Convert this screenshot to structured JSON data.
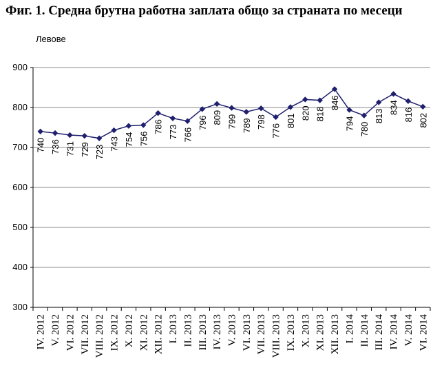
{
  "title": "Фиг. 1. Средна брутна работна заплата общо за страната по месеци",
  "chart_data": {
    "type": "line",
    "ylabel": "Левове",
    "ylim": [
      300,
      900
    ],
    "yticks": [
      300,
      400,
      500,
      600,
      700,
      800,
      900
    ],
    "grid": true,
    "categories": [
      "IV. 2012",
      "V. 2012",
      "VI. 2012",
      "VII. 2012",
      "VIII. 2012",
      "IX. 2012",
      "X. 2012",
      "XI. 2012",
      "XII. 2012",
      "I. 2013",
      "II. 2013",
      "III. 2013",
      "IV. 2013",
      "V. 2013",
      "VI. 2013",
      "VII. 2013",
      "VIII. 2013",
      "IX. 2013",
      "X. 2013",
      "XI. 2013",
      "XII. 2013",
      "I. 2014",
      "II. 2014",
      "III. 2014",
      "IV. 2014",
      "V. 2014",
      "VI. 2014"
    ],
    "values": [
      740,
      736,
      731,
      729,
      723,
      743,
      754,
      756,
      786,
      773,
      766,
      796,
      809,
      799,
      789,
      798,
      776,
      801,
      820,
      818,
      846,
      794,
      780,
      813,
      834,
      816,
      802
    ],
    "line_color": "#1f1f6e",
    "marker": "diamond"
  }
}
